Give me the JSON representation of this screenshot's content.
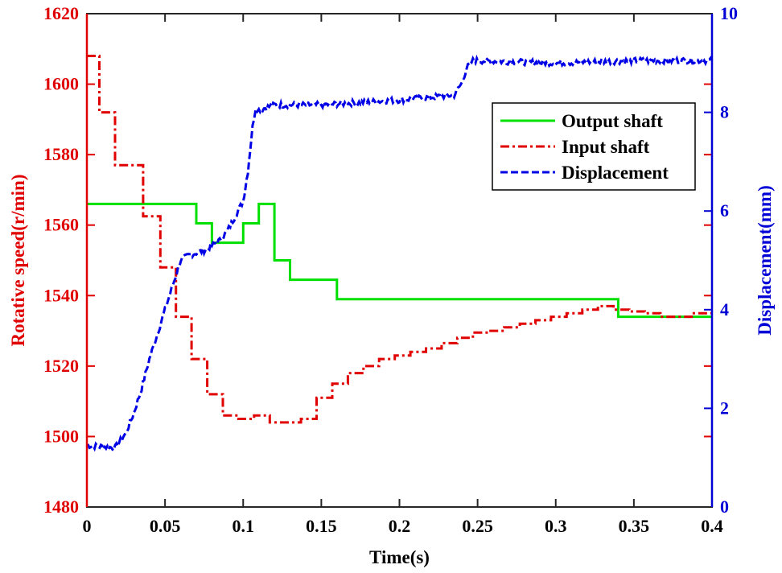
{
  "chart_data": {
    "type": "line",
    "xlabel": "Time(s)",
    "ylabel_left": "Rotative speed(r/min)",
    "ylabel_right": "Displacement(mm)",
    "xlim": [
      0,
      0.4
    ],
    "ylim_left": [
      1480,
      1620
    ],
    "ylim_right": [
      0,
      10
    ],
    "x_ticks": [
      "0",
      "0.05",
      "0.1",
      "0.15",
      "0.2",
      "0.25",
      "0.3",
      "0.35",
      "0.4"
    ],
    "y_left_ticks": [
      "1480",
      "1500",
      "1520",
      "1540",
      "1560",
      "1580",
      "1600",
      "1620"
    ],
    "y_right_ticks": [
      "0",
      "2",
      "4",
      "6",
      "8",
      "10"
    ],
    "legend_position": "top-right",
    "grid": false,
    "series": [
      {
        "name": "Output shaft",
        "axis": "left",
        "color": "#00e000",
        "style": "solid",
        "step": true,
        "points": [
          [
            0,
            1566
          ],
          [
            0.07,
            1560.5
          ],
          [
            0.08,
            1555
          ],
          [
            0.1,
            1560.5
          ],
          [
            0.11,
            1566
          ],
          [
            0.12,
            1550
          ],
          [
            0.13,
            1544.5
          ],
          [
            0.16,
            1539
          ],
          [
            0.34,
            1534
          ],
          [
            0.4,
            1534
          ]
        ]
      },
      {
        "name": "Input shaft",
        "axis": "left",
        "color": "#e00000",
        "style": "dashdot",
        "step": true,
        "points": [
          [
            0,
            1608
          ],
          [
            0.008,
            1592
          ],
          [
            0.018,
            1577
          ],
          [
            0.036,
            1562.5
          ],
          [
            0.047,
            1548
          ],
          [
            0.057,
            1534
          ],
          [
            0.067,
            1522
          ],
          [
            0.077,
            1512
          ],
          [
            0.087,
            1506
          ],
          [
            0.097,
            1505
          ],
          [
            0.107,
            1506
          ],
          [
            0.117,
            1504
          ],
          [
            0.137,
            1505
          ],
          [
            0.147,
            1511
          ],
          [
            0.157,
            1515
          ],
          [
            0.167,
            1518
          ],
          [
            0.177,
            1520
          ],
          [
            0.187,
            1522
          ],
          [
            0.197,
            1523
          ],
          [
            0.207,
            1524
          ],
          [
            0.217,
            1525
          ],
          [
            0.227,
            1526.5
          ],
          [
            0.237,
            1528
          ],
          [
            0.247,
            1529.5
          ],
          [
            0.257,
            1530
          ],
          [
            0.267,
            1531
          ],
          [
            0.277,
            1532
          ],
          [
            0.287,
            1533
          ],
          [
            0.297,
            1534
          ],
          [
            0.307,
            1535
          ],
          [
            0.317,
            1536
          ],
          [
            0.327,
            1537
          ],
          [
            0.337,
            1536
          ],
          [
            0.347,
            1535.5
          ],
          [
            0.357,
            1535
          ],
          [
            0.367,
            1534
          ],
          [
            0.377,
            1534
          ],
          [
            0.387,
            1535
          ],
          [
            0.4,
            1535
          ]
        ]
      },
      {
        "name": "Displacement",
        "axis": "right",
        "color": "#0000e6",
        "style": "dashed",
        "step": false,
        "noise": 0.06,
        "points": [
          [
            0,
            1.25
          ],
          [
            0.018,
            1.2
          ],
          [
            0.025,
            1.5
          ],
          [
            0.03,
            1.9
          ],
          [
            0.035,
            2.4
          ],
          [
            0.04,
            3.0
          ],
          [
            0.045,
            3.5
          ],
          [
            0.05,
            4.0
          ],
          [
            0.055,
            4.5
          ],
          [
            0.06,
            5.0
          ],
          [
            0.065,
            5.1
          ],
          [
            0.075,
            5.2
          ],
          [
            0.085,
            5.4
          ],
          [
            0.09,
            5.6
          ],
          [
            0.095,
            5.9
          ],
          [
            0.1,
            6.2
          ],
          [
            0.103,
            6.8
          ],
          [
            0.106,
            7.7
          ],
          [
            0.108,
            8.1
          ],
          [
            0.11,
            8.05
          ],
          [
            0.12,
            8.15
          ],
          [
            0.15,
            8.15
          ],
          [
            0.2,
            8.25
          ],
          [
            0.235,
            8.35
          ],
          [
            0.24,
            8.6
          ],
          [
            0.243,
            8.9
          ],
          [
            0.247,
            9.05
          ],
          [
            0.3,
            9.0
          ],
          [
            0.35,
            9.05
          ],
          [
            0.4,
            9.05
          ]
        ]
      }
    ]
  }
}
